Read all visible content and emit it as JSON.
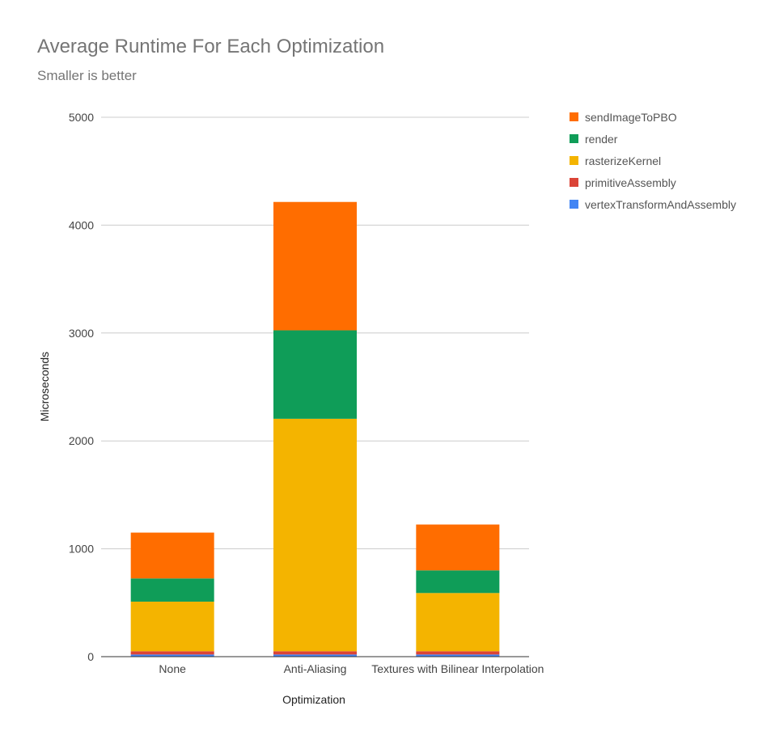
{
  "chart_data": {
    "type": "bar",
    "stacked": true,
    "title": "Average Runtime For Each Optimization",
    "subtitle": "Smaller is better",
    "xlabel": "Optimization",
    "ylabel": "Microseconds",
    "ylim": [
      0,
      5000
    ],
    "yticks": [
      0,
      1000,
      2000,
      3000,
      4000,
      5000
    ],
    "grid": true,
    "legend_position": "right",
    "categories": [
      "None",
      "Anti-Aliasing",
      "Textures with Bilinear Interpolation"
    ],
    "series": [
      {
        "name": "vertexTransformAndAssembly",
        "color": "#4285f4",
        "values": [
          20,
          20,
          20
        ]
      },
      {
        "name": "primitiveAssembly",
        "color": "#db4437",
        "values": [
          30,
          30,
          30
        ]
      },
      {
        "name": "rasterizeKernel",
        "color": "#f4b400",
        "values": [
          460,
          2155,
          540
        ]
      },
      {
        "name": "render",
        "color": "#0f9d58",
        "values": [
          215,
          820,
          210
        ]
      },
      {
        "name": "sendImageToPBO",
        "color": "#ff6d00",
        "values": [
          425,
          1190,
          425
        ]
      }
    ]
  }
}
